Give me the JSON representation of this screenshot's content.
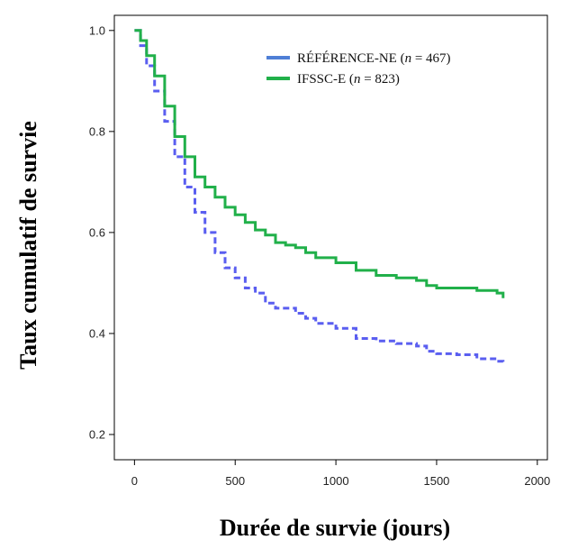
{
  "chart_data": {
    "type": "line",
    "xlabel": "Durée de survie (jours)",
    "ylabel": "Taux cumulatif de survie",
    "xlim": [
      -100,
      2050
    ],
    "ylim": [
      0.15,
      1.03
    ],
    "x_ticks": [
      "0",
      "500",
      "1000",
      "1500",
      "2000"
    ],
    "y_ticks": [
      "0.2",
      "0.4",
      "0.6",
      "0.8",
      "1.0"
    ],
    "grid": false,
    "legend_position": "top-right",
    "series": [
      {
        "name": "RÉFÉRENCE-NE (n = 467)",
        "legend_prefix": "RÉFÉRENCE-NE (",
        "legend_n": "n",
        "legend_suffix": " = 467)",
        "color": "#5a5ef0",
        "dashed": true,
        "x": [
          0,
          30,
          60,
          100,
          150,
          200,
          250,
          300,
          350,
          400,
          450,
          500,
          550,
          600,
          650,
          700,
          750,
          800,
          850,
          900,
          1000,
          1100,
          1200,
          1300,
          1400,
          1450,
          1500,
          1600,
          1700,
          1800,
          1830
        ],
        "y": [
          1.0,
          0.97,
          0.93,
          0.88,
          0.82,
          0.75,
          0.69,
          0.64,
          0.6,
          0.56,
          0.53,
          0.51,
          0.49,
          0.48,
          0.46,
          0.45,
          0.45,
          0.44,
          0.43,
          0.42,
          0.41,
          0.39,
          0.385,
          0.38,
          0.375,
          0.365,
          0.36,
          0.358,
          0.35,
          0.345,
          0.34
        ]
      },
      {
        "name": "IFSSC-E (n = 823)",
        "legend_prefix": "IFSSC-E (",
        "legend_n": "n",
        "legend_suffix": " = 823)",
        "color": "#21b04a",
        "dashed": false,
        "x": [
          0,
          30,
          60,
          100,
          150,
          200,
          250,
          300,
          350,
          400,
          450,
          500,
          550,
          600,
          650,
          700,
          750,
          800,
          850,
          900,
          1000,
          1100,
          1200,
          1300,
          1400,
          1450,
          1500,
          1600,
          1700,
          1800,
          1830
        ],
        "y": [
          1.0,
          0.98,
          0.95,
          0.91,
          0.85,
          0.79,
          0.75,
          0.71,
          0.69,
          0.67,
          0.65,
          0.635,
          0.62,
          0.605,
          0.595,
          0.58,
          0.575,
          0.57,
          0.56,
          0.55,
          0.54,
          0.525,
          0.515,
          0.51,
          0.505,
          0.495,
          0.49,
          0.49,
          0.485,
          0.48,
          0.47
        ]
      }
    ]
  }
}
